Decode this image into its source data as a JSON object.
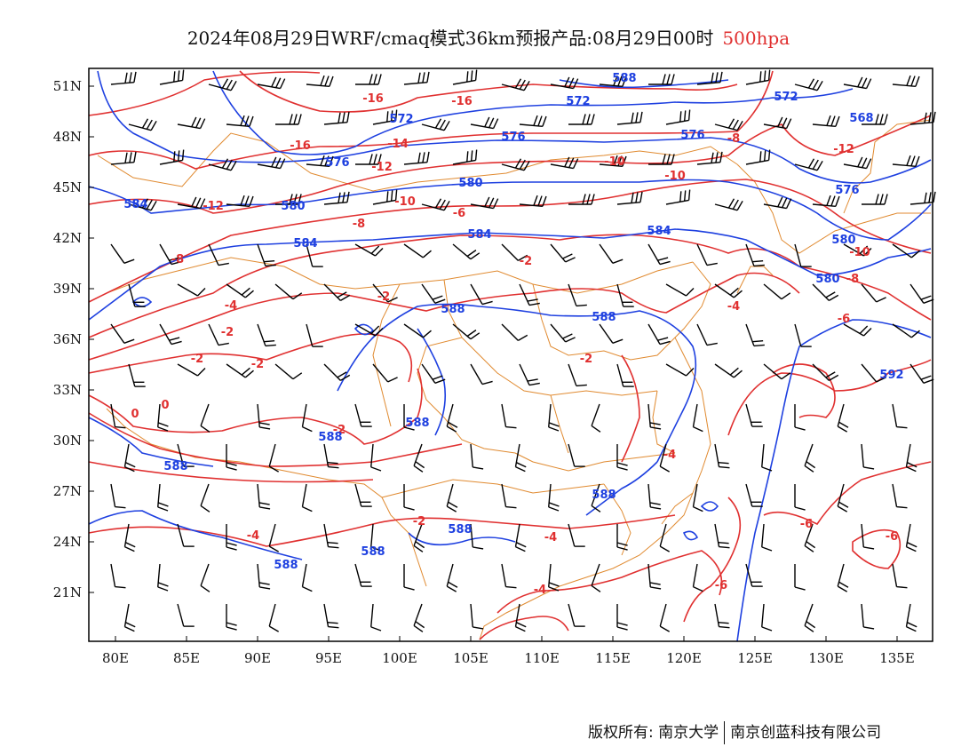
{
  "header": {
    "title": "2024年08月29日WRF/cmaq模式36km预报产品:08月29日00时",
    "level": "500hpa"
  },
  "map": {
    "lat_labels": [
      "51N",
      "48N",
      "45N",
      "42N",
      "39N",
      "36N",
      "33N",
      "30N",
      "27N",
      "24N",
      "21N"
    ],
    "lon_labels": [
      "80E",
      "85E",
      "90E",
      "95E",
      "100E",
      "105E",
      "110E",
      "115E",
      "120E",
      "125E",
      "130E",
      "135E"
    ],
    "colors": {
      "temperature_contours": "#e03030",
      "geopotential_contours": "#1e40e0",
      "boundaries": "#e08a30",
      "wind_barbs": "#000000"
    },
    "temperature_labels": [
      "-16",
      "-16",
      "-16",
      "-14",
      "-12",
      "-12",
      "-10",
      "-10",
      "-10",
      "-8",
      "-8",
      "-8",
      "-6",
      "-6",
      "-4",
      "-4",
      "-2",
      "-2",
      "-2",
      "-2",
      "-2",
      "0",
      "0",
      "-2",
      "-2",
      "-4",
      "-4",
      "-4",
      "-6",
      "-6",
      "-6",
      "-4",
      "-2",
      "-10",
      "-12",
      "-8"
    ],
    "height_labels": [
      "588",
      "572",
      "572",
      "572",
      "568",
      "576",
      "576",
      "576",
      "576",
      "584",
      "580",
      "580",
      "584",
      "584",
      "584",
      "580",
      "588",
      "588",
      "588",
      "588",
      "588",
      "588",
      "588",
      "588",
      "592",
      "588",
      "580"
    ]
  },
  "footer": {
    "copyright_left": "版权所有: 南京大学",
    "copyright_right": "南京创蓝科技有限公司"
  }
}
